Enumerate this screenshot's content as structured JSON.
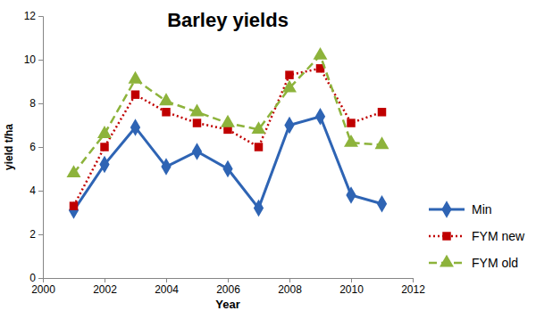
{
  "chart_data": {
    "type": "line",
    "title": "Barley yields",
    "x_label": "Year",
    "y_label": "yield t/ha",
    "x": [
      2001,
      2002,
      2003,
      2004,
      2005,
      2006,
      2007,
      2008,
      2009,
      2010,
      2011
    ],
    "series": [
      {
        "name": "Min",
        "color": "#2e64b4",
        "marker": "diamond",
        "line_style": "solid",
        "values": [
          3.1,
          5.2,
          6.9,
          5.1,
          5.8,
          5.0,
          3.2,
          7.0,
          7.4,
          3.8,
          3.4
        ]
      },
      {
        "name": "FYM new",
        "color": "#c00000",
        "marker": "square",
        "line_style": "dotted",
        "values": [
          3.3,
          6.0,
          8.4,
          7.6,
          7.1,
          6.8,
          6.0,
          9.3,
          9.6,
          7.1,
          7.6
        ]
      },
      {
        "name": "FYM old",
        "color": "#8db33b",
        "marker": "triangle",
        "line_style": "dashed",
        "values": [
          4.8,
          6.6,
          9.1,
          8.1,
          7.6,
          7.1,
          6.8,
          8.7,
          10.2,
          6.2,
          6.1
        ]
      }
    ],
    "xlim": [
      2000,
      2012
    ],
    "xticks": [
      2000,
      2002,
      2004,
      2006,
      2008,
      2010,
      2012
    ],
    "ylim": [
      0,
      12
    ],
    "yticks": [
      0,
      2,
      4,
      6,
      8,
      10,
      12
    ],
    "grid": false,
    "legend": "right"
  }
}
